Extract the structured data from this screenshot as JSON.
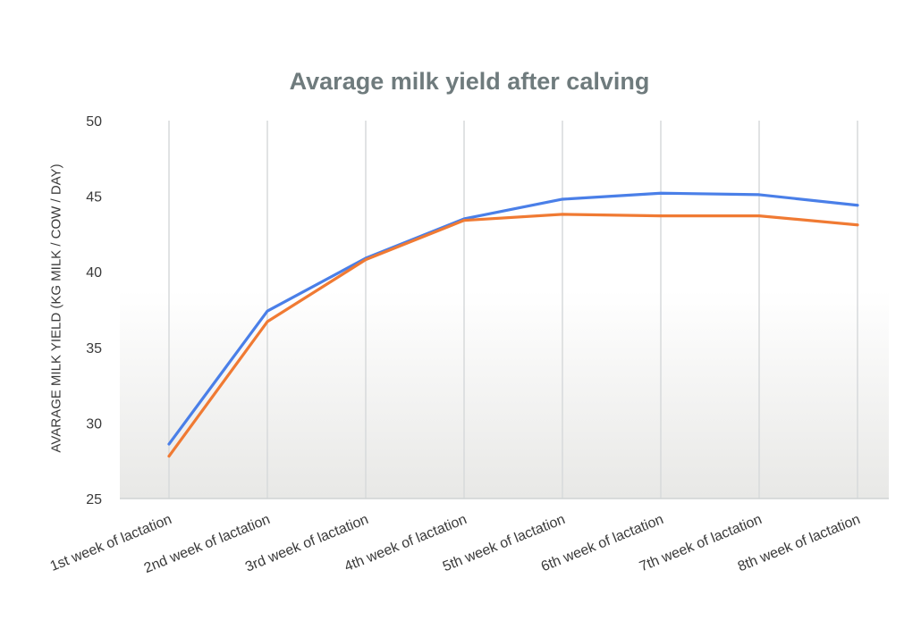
{
  "chart_data": {
    "type": "line",
    "title": "Avarage milk yield after calving",
    "xlabel": "",
    "ylabel": "AVARAGE MILK YIELD  (KG MILK / COW /  DAY)",
    "categories": [
      "1st week of lactation",
      "2nd week of lactation",
      "3rd week of lactation",
      "4th week of lactation",
      "5th week of lactation",
      "6th week of lactation",
      "7th week of lactation",
      "8th week of lactation"
    ],
    "series": [
      {
        "color": "#4a7fe8",
        "values": [
          28.6,
          37.4,
          40.9,
          43.5,
          44.8,
          45.2,
          45.1,
          44.4
        ]
      },
      {
        "color": "#f07a33",
        "values": [
          27.8,
          36.7,
          40.8,
          43.4,
          43.8,
          43.7,
          43.7,
          43.1
        ]
      }
    ],
    "ylim": [
      25,
      50
    ],
    "yticks": [
      "25",
      "30",
      "35",
      "40",
      "45",
      "50"
    ],
    "grid": "vertical",
    "legend": "none"
  }
}
